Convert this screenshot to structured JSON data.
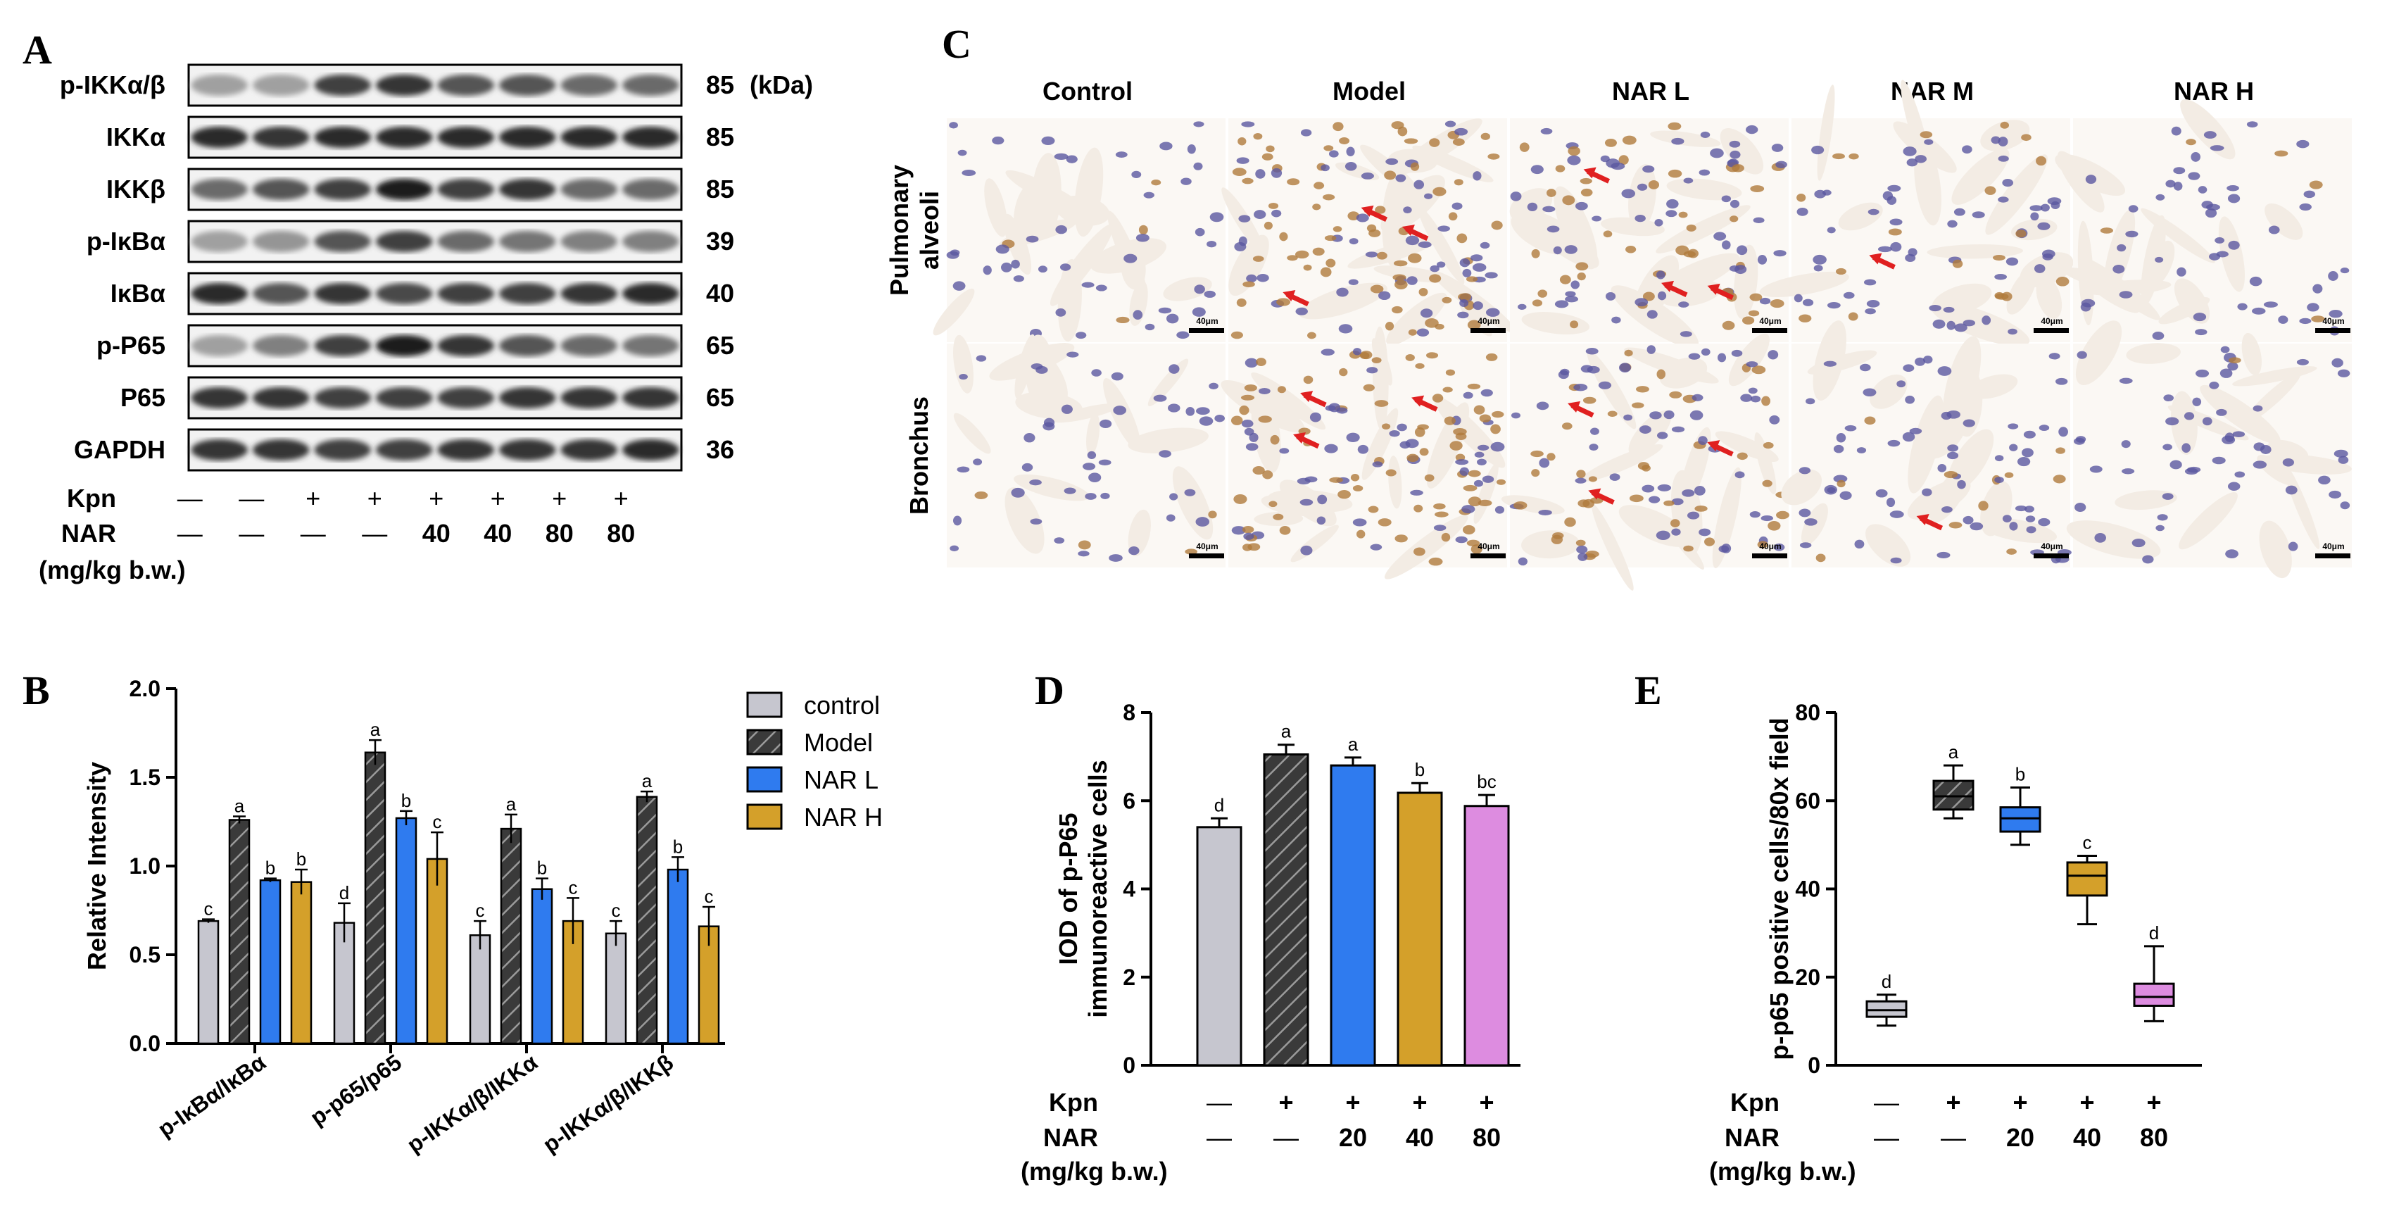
{
  "panels": {
    "A": "A",
    "B": "B",
    "C": "C",
    "D": "D",
    "E": "E"
  },
  "blot": {
    "kda_unit": "(kDa)",
    "proteins": [
      {
        "name": "p-IKKα/β",
        "kda": "85",
        "intensity": [
          0.35,
          0.35,
          0.8,
          0.85,
          0.7,
          0.7,
          0.6,
          0.6
        ]
      },
      {
        "name": "IKKα",
        "kda": "85",
        "intensity": [
          0.9,
          0.85,
          0.9,
          0.9,
          0.9,
          0.9,
          0.9,
          0.9
        ]
      },
      {
        "name": "IKKβ",
        "kda": "85",
        "intensity": [
          0.6,
          0.7,
          0.8,
          0.95,
          0.8,
          0.85,
          0.6,
          0.6
        ]
      },
      {
        "name": "p-IκBα",
        "kda": "39",
        "intensity": [
          0.35,
          0.4,
          0.7,
          0.8,
          0.6,
          0.55,
          0.5,
          0.5
        ]
      },
      {
        "name": "IκBα",
        "kda": "40",
        "intensity": [
          0.9,
          0.7,
          0.85,
          0.75,
          0.8,
          0.8,
          0.85,
          0.9
        ]
      },
      {
        "name": "p-P65",
        "kda": "65",
        "intensity": [
          0.35,
          0.5,
          0.8,
          0.95,
          0.85,
          0.7,
          0.6,
          0.55
        ]
      },
      {
        "name": "P65",
        "kda": "65",
        "intensity": [
          0.85,
          0.85,
          0.8,
          0.8,
          0.8,
          0.85,
          0.85,
          0.85
        ]
      },
      {
        "name": "GAPDH",
        "kda": "36",
        "intensity": [
          0.85,
          0.85,
          0.8,
          0.8,
          0.85,
          0.85,
          0.85,
          0.9
        ]
      }
    ],
    "kpn_label": "Kpn",
    "kpn_values": [
      "—",
      "—",
      "+",
      "+",
      "+",
      "+",
      "+",
      "+"
    ],
    "nar_label": "NAR",
    "nar_values": [
      "—",
      "—",
      "—",
      "—",
      "40",
      "40",
      "80",
      "80"
    ],
    "unit_label": "(mg/kg b.w.)"
  },
  "ihc": {
    "columns": [
      "Control",
      "Model",
      "NAR L",
      "NAR M",
      "NAR H"
    ],
    "rows": [
      {
        "line1": "Pulmonary",
        "line2": "alveoli"
      },
      {
        "line1": "Bronchus",
        "line2": ""
      }
    ],
    "scale_label": "40μm",
    "stain_level": [
      0.1,
      1.0,
      0.7,
      0.4,
      0.15
    ]
  },
  "colors": {
    "control": "#c6c6cf",
    "model": "#3a3a3a",
    "narl": "#2f7bef",
    "narm": "#d4a02a",
    "narh": "#d4a02a",
    "pink": "#dd8ce0",
    "arrow": "#e02020",
    "tissue": "#f3ece4",
    "nucleus": "#5b57a0",
    "brown": "#b07a3c"
  },
  "chart_data": [
    {
      "type": "bar",
      "panel": "B",
      "ylabel": "Relative Intensity",
      "ylim": [
        0,
        2.0
      ],
      "yticks": [
        "0.0",
        "0.5",
        "1.0",
        "1.5",
        "2.0"
      ],
      "categories": [
        "p-IκBα/IκBα",
        "p-p65/p65",
        "p-IKKα/β/IKKα",
        "p-IKKα/β/IKKβ"
      ],
      "series": [
        {
          "name": "control",
          "values": [
            0.69,
            0.68,
            0.61,
            0.62
          ],
          "err": [
            0.01,
            0.11,
            0.08,
            0.07
          ],
          "letters": [
            "c",
            "d",
            "c",
            "c"
          ]
        },
        {
          "name": "Model",
          "values": [
            1.26,
            1.64,
            1.21,
            1.39
          ],
          "err": [
            0.02,
            0.07,
            0.08,
            0.03
          ],
          "letters": [
            "a",
            "a",
            "a",
            "a"
          ]
        },
        {
          "name": "NAR L",
          "values": [
            0.92,
            1.27,
            0.87,
            0.98
          ],
          "err": [
            0.01,
            0.04,
            0.06,
            0.07
          ],
          "letters": [
            "b",
            "b",
            "b",
            "b"
          ]
        },
        {
          "name": "NAR H",
          "values": [
            0.91,
            1.04,
            0.69,
            0.66
          ],
          "err": [
            0.07,
            0.15,
            0.13,
            0.11
          ],
          "letters": [
            "b",
            "c",
            "c",
            "c"
          ]
        }
      ],
      "legend_placement": "right"
    },
    {
      "type": "bar",
      "panel": "D",
      "ylabel_line1": "IOD of p-P65",
      "ylabel_line2": "immunoreactive cells",
      "ylim": [
        0,
        8
      ],
      "yticks": [
        "0",
        "2",
        "4",
        "6",
        "8"
      ],
      "values": [
        5.4,
        7.05,
        6.8,
        6.18,
        5.88
      ],
      "err": [
        0.2,
        0.22,
        0.18,
        0.22,
        0.25
      ],
      "letters": [
        "d",
        "a",
        "a",
        "b",
        "bc"
      ],
      "kpn_label": "Kpn",
      "kpn_values": [
        "—",
        "+",
        "+",
        "+",
        "+"
      ],
      "nar_label": "NAR",
      "nar_values": [
        "—",
        "—",
        "20",
        "40",
        "80"
      ],
      "unit_label": "(mg/kg b.w.)"
    },
    {
      "type": "box",
      "panel": "E",
      "ylabel": "p-p65 positive cells/80x field",
      "ylim": [
        0,
        80
      ],
      "yticks": [
        "0",
        "20",
        "40",
        "60",
        "80"
      ],
      "boxes": [
        {
          "min": 9,
          "q1": 11,
          "median": 12.5,
          "q3": 14.5,
          "max": 16,
          "letter": "d"
        },
        {
          "min": 56,
          "q1": 58,
          "median": 61,
          "q3": 64.5,
          "max": 68,
          "letter": "a"
        },
        {
          "min": 50,
          "q1": 53,
          "median": 56,
          "q3": 58.5,
          "max": 63,
          "letter": "b"
        },
        {
          "min": 32,
          "q1": 38.5,
          "median": 43,
          "q3": 46,
          "max": 47.5,
          "letter": "c"
        },
        {
          "min": 10,
          "q1": 13.5,
          "median": 15.5,
          "q3": 18.5,
          "max": 27,
          "letter": "d"
        }
      ],
      "kpn_label": "Kpn",
      "kpn_values": [
        "—",
        "+",
        "+",
        "+",
        "+"
      ],
      "nar_label": "NAR",
      "nar_values": [
        "—",
        "—",
        "20",
        "40",
        "80"
      ],
      "unit_label": "(mg/kg b.w.)"
    }
  ]
}
